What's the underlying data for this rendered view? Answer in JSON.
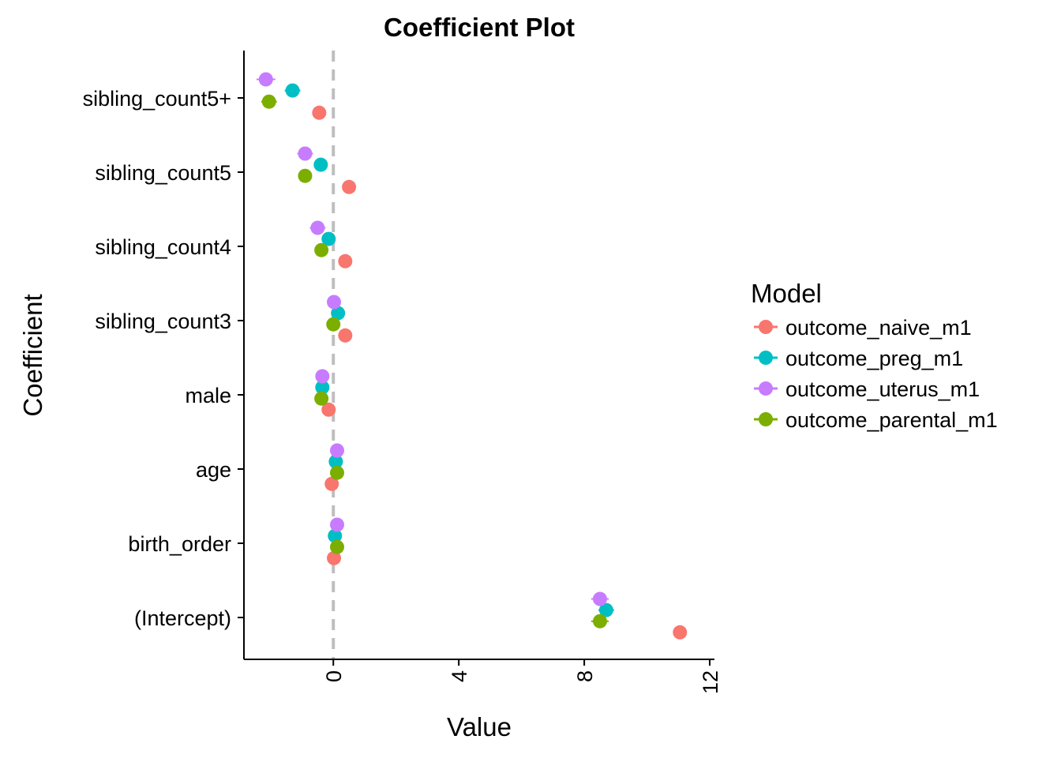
{
  "chart_data": {
    "type": "scatter",
    "title": "Coefficient Plot",
    "xlabel": "Value",
    "ylabel": "Coefficient",
    "xlim": [
      -2.85,
      12.15
    ],
    "x_ticks": [
      0,
      4,
      8,
      12
    ],
    "x_tick_labels": [
      "0",
      "4",
      "8",
      "12"
    ],
    "reference_line": 0,
    "categories": [
      "sibling_count5+",
      "sibling_count5",
      "sibling_count4",
      "sibling_count3",
      "male",
      "age",
      "birth_order",
      "(Intercept)"
    ],
    "legend": {
      "title": "Model",
      "position": "right"
    },
    "series": [
      {
        "name": "outcome_naive_m1",
        "color": "#F8766D",
        "offset": 0.2,
        "values": [
          -0.45,
          0.5,
          0.38,
          0.38,
          -0.15,
          -0.05,
          0.02,
          11.05
        ],
        "err": [
          0.1,
          0.1,
          0.1,
          0.1,
          0.08,
          0.08,
          0.08,
          0.12
        ]
      },
      {
        "name": "outcome_preg_m1",
        "color": "#00BFC4",
        "offset": -0.1,
        "values": [
          -1.3,
          -0.4,
          -0.15,
          0.15,
          -0.35,
          0.08,
          0.05,
          8.7
        ],
        "err": [
          0.25,
          0.2,
          0.2,
          0.15,
          0.12,
          0.1,
          0.1,
          0.25
        ]
      },
      {
        "name": "outcome_uterus_m1",
        "color": "#C77CFF",
        "offset": -0.25,
        "values": [
          -2.15,
          -0.9,
          -0.5,
          0.02,
          -0.35,
          0.12,
          0.12,
          8.5
        ],
        "err": [
          0.3,
          0.25,
          0.25,
          0.15,
          0.12,
          0.1,
          0.1,
          0.28
        ]
      },
      {
        "name": "outcome_parental_m1",
        "color": "#7CAE00",
        "offset": 0.05,
        "values": [
          -2.05,
          -0.9,
          -0.38,
          0.0,
          -0.38,
          0.12,
          0.12,
          8.5
        ],
        "err": [
          0.25,
          0.2,
          0.2,
          0.15,
          0.12,
          0.1,
          0.1,
          0.28
        ]
      }
    ]
  }
}
